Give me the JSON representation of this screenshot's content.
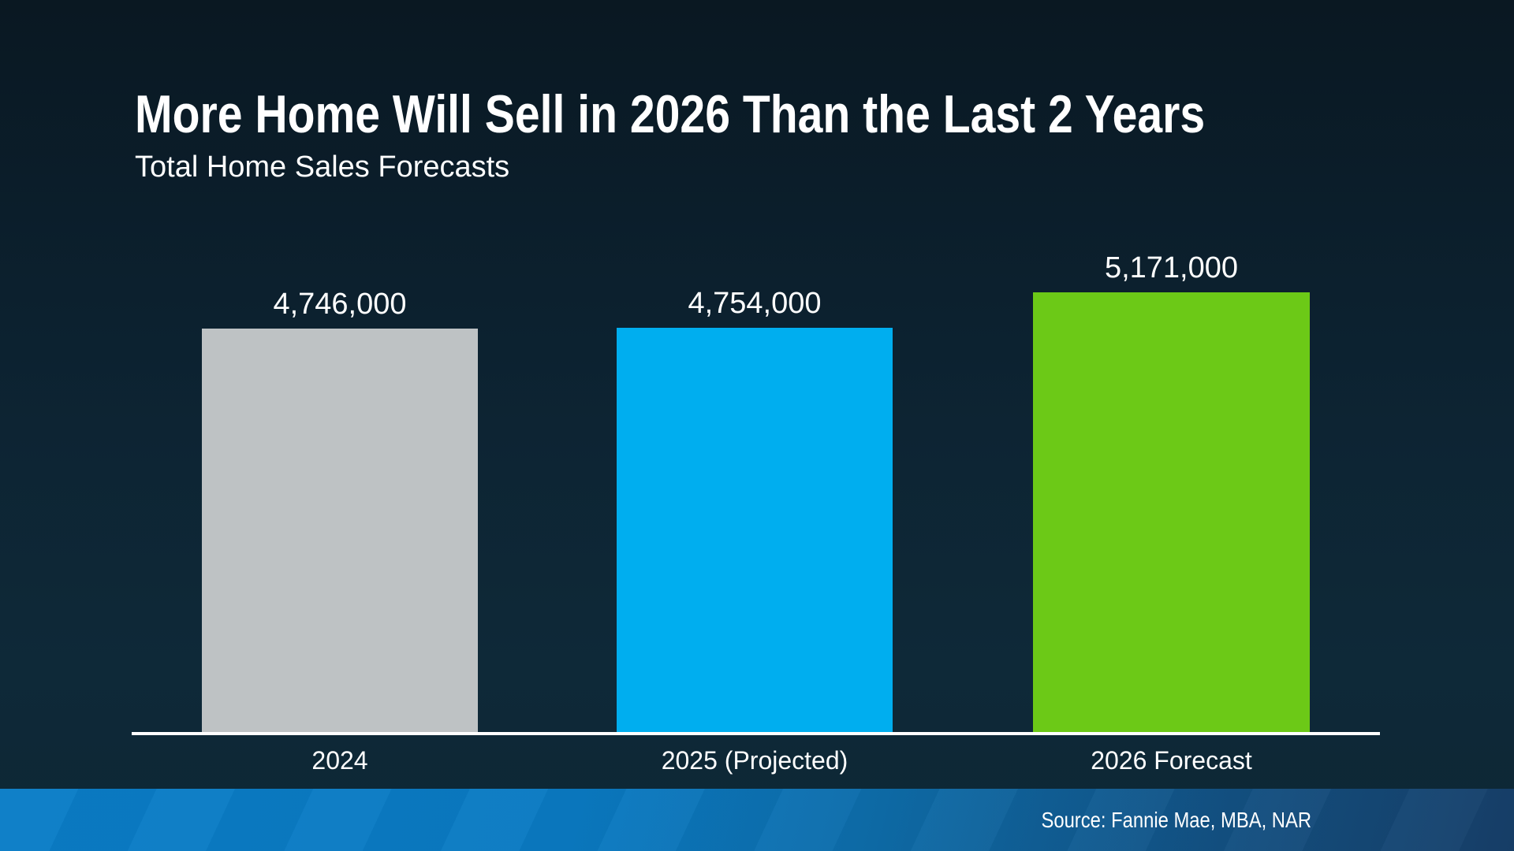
{
  "slide": {
    "title": "More Home Will Sell in 2026 Than the Last 2 Years",
    "subtitle": "Total Home Sales Forecasts",
    "source": "Source: Fannie Mae, MBA, NAR"
  },
  "colors": {
    "background_top": "#0a1822",
    "background_bottom": "#0d2735",
    "axis_line": "#ffffff",
    "text": "#ffffff",
    "footer_gradient_left": "#0a7dc7",
    "footer_gradient_right": "#173f69"
  },
  "chart_data": {
    "type": "bar",
    "title": "More Home Will Sell in 2026 Than the Last 2 Years",
    "subtitle": "Total Home Sales Forecasts",
    "categories": [
      "2024",
      "2025 (Projected)",
      "2026 Forecast"
    ],
    "values": [
      4746000,
      4754000,
      5171000
    ],
    "value_labels": [
      "4,746,000",
      "4,754,000",
      "5,171,000"
    ],
    "colors": [
      "#bec2c4",
      "#00aeef",
      "#6cc917"
    ],
    "xlabel": "",
    "ylabel": "",
    "ylim": [
      0,
      5171000
    ],
    "grid": false,
    "legend": false,
    "annotations": [
      "Source: Fannie Mae, MBA, NAR"
    ]
  }
}
